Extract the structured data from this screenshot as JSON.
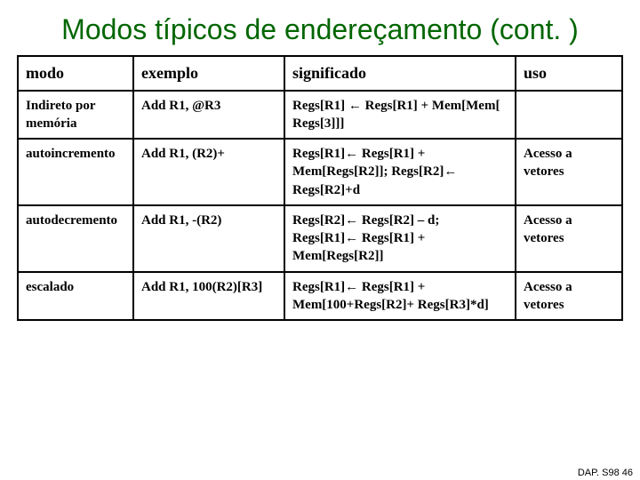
{
  "title": "Modos típicos de endereçamento (cont. )",
  "table": {
    "headers": [
      "modo",
      "exemplo",
      "significado",
      "uso"
    ],
    "rows": [
      {
        "modo": "Indireto por memória",
        "exemplo": "Add R1, @R3",
        "significado": "Regs[R1] ← Regs[R1] + Mem[Mem[ Regs[3]]]",
        "uso": ""
      },
      {
        "modo": "autoincremento",
        "exemplo": "Add R1, (R2)+",
        "significado": "Regs[R1]← Regs[R1] + Mem[Regs[R2]]; Regs[R2]← Regs[R2]+d",
        "uso": "Acesso a vetores"
      },
      {
        "modo": "autodecremento",
        "exemplo": "Add R1, -(R2)",
        "significado": "Regs[R2]← Regs[R2] – d; Regs[R1]← Regs[R1] + Mem[Regs[R2]]",
        "uso": "Acesso a vetores"
      },
      {
        "modo": "escalado",
        "exemplo": "Add R1, 100(R2)[R3]",
        "significado": "Regs[R1]← Regs[R1] + Mem[100+Regs[R2]+ Regs[R3]*d]",
        "uso": "Acesso a vetores"
      }
    ]
  },
  "footer": "DAP. S98 46",
  "colors": {
    "title_color": "#006600",
    "border_color": "#000000",
    "background": "#ffffff"
  }
}
